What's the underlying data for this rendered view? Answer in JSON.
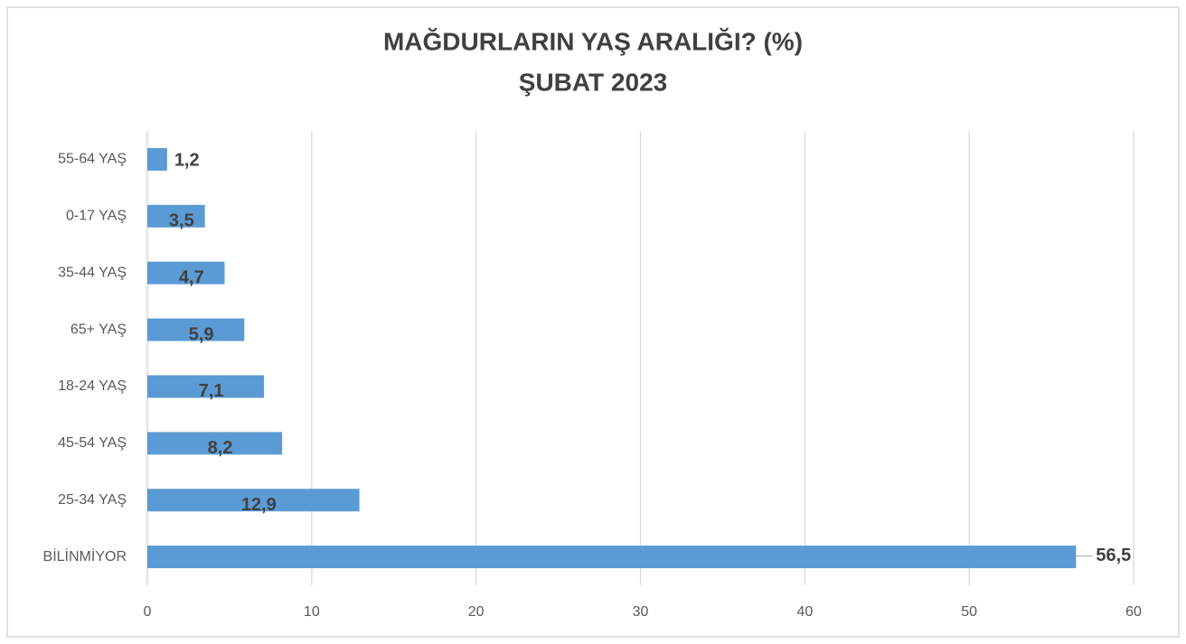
{
  "chart_data": {
    "type": "bar",
    "orientation": "horizontal",
    "title": "MAĞDURLARIN YAŞ ARALIĞI? (%)",
    "subtitle": "ŞUBAT 2023",
    "categories": [
      "55-64 YAŞ",
      "0-17 YAŞ",
      "35-44 YAŞ",
      "65+ YAŞ",
      "18-24 YAŞ",
      "45-54 YAŞ",
      "25-34 YAŞ",
      "BİLİNMİYOR"
    ],
    "values": [
      1.2,
      3.5,
      4.7,
      5.9,
      7.1,
      8.2,
      12.9,
      56.5
    ],
    "value_labels": [
      "1,2",
      "3,5",
      "4,7",
      "5,9",
      "7,1",
      "8,2",
      "12,9",
      "56,5"
    ],
    "color": "#5b9bd5",
    "xlim": [
      0,
      60
    ],
    "xticks": [
      0,
      10,
      20,
      30,
      40,
      50,
      60
    ],
    "grid": true
  }
}
